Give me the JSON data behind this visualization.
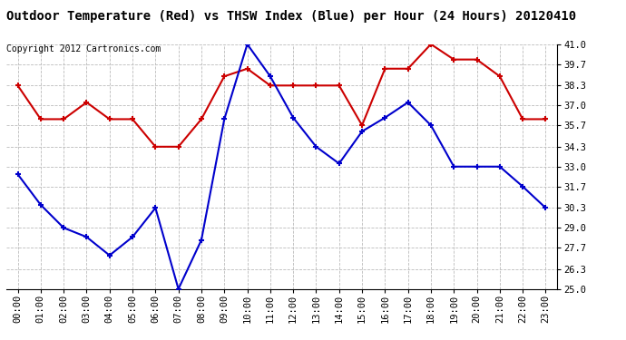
{
  "title": "Outdoor Temperature (Red) vs THSW Index (Blue) per Hour (24 Hours) 20120410",
  "copyright": "Copyright 2012 Cartronics.com",
  "hours": [
    "00:00",
    "01:00",
    "02:00",
    "03:00",
    "04:00",
    "05:00",
    "06:00",
    "07:00",
    "08:00",
    "09:00",
    "10:00",
    "11:00",
    "12:00",
    "13:00",
    "14:00",
    "15:00",
    "16:00",
    "17:00",
    "18:00",
    "19:00",
    "20:00",
    "21:00",
    "22:00",
    "23:00"
  ],
  "red_data": [
    38.3,
    36.1,
    36.1,
    37.2,
    36.1,
    36.1,
    34.3,
    34.3,
    36.1,
    38.9,
    39.4,
    38.3,
    38.3,
    38.3,
    38.3,
    35.7,
    39.4,
    39.4,
    41.0,
    40.0,
    40.0,
    38.9,
    36.1,
    36.1
  ],
  "blue_data": [
    32.5,
    30.5,
    29.0,
    28.4,
    27.2,
    28.4,
    30.3,
    25.0,
    28.2,
    36.1,
    41.0,
    38.9,
    36.2,
    34.3,
    33.2,
    35.3,
    36.2,
    37.2,
    35.7,
    33.0,
    33.0,
    33.0,
    31.7,
    30.3
  ],
  "ylim": [
    25.0,
    41.0
  ],
  "yticks": [
    25.0,
    26.3,
    27.7,
    29.0,
    30.3,
    31.7,
    33.0,
    34.3,
    35.7,
    37.0,
    38.3,
    39.7,
    41.0
  ],
  "red_color": "#cc0000",
  "blue_color": "#0000cc",
  "background_color": "#ffffff",
  "grid_color": "#bbbbbb",
  "title_fontsize": 10,
  "tick_fontsize": 7.5,
  "copyright_fontsize": 7
}
